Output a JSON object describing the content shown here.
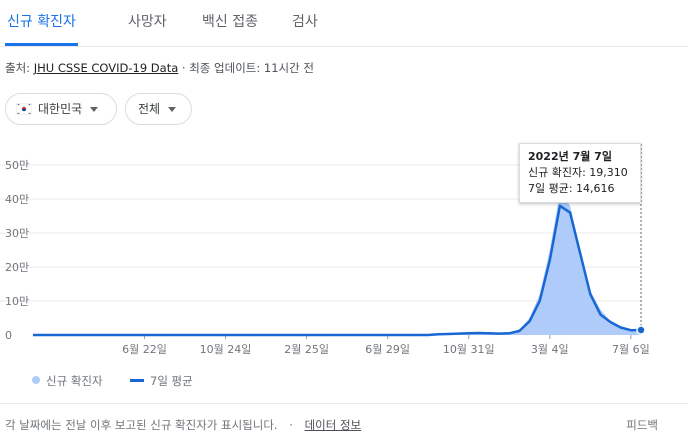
{
  "tabs": [
    {
      "label": "신규 확진자",
      "active": true
    },
    {
      "label": "사망자",
      "active": false
    },
    {
      "label": "백신 접종",
      "active": false
    },
    {
      "label": "검사",
      "active": false
    }
  ],
  "source": {
    "prefix": "출처: ",
    "link": "JHU CSSE COVID-19 Data",
    "suffix": " · 최종 업데이트: 11시간 전"
  },
  "filters": {
    "region": "대한민국",
    "period": "전체"
  },
  "tooltip": {
    "date": "2022년 7월 7일",
    "cases": "신규 확진자: 19,310",
    "average": "7일 평균: 14,616"
  },
  "legend": {
    "cases": "신규 확진자",
    "average": "7일 평균"
  },
  "footer": {
    "note": "각 날짜에는 전날 이후 보고된 신규 확진자가 표시됩니다.",
    "separator": "·",
    "data_link": "데이터 정보",
    "feedback": "피드백"
  },
  "colors": {
    "accent": "#1a73e8",
    "cases_fill": "#aecbfa",
    "average_line": "#1967d2"
  },
  "chart_data": {
    "type": "area",
    "ylim": [
      0,
      500000
    ],
    "y_ticks": [
      {
        "value": 0,
        "label": "0"
      },
      {
        "value": 100000,
        "label": "10만"
      },
      {
        "value": 200000,
        "label": "20만"
      },
      {
        "value": 300000,
        "label": "30만"
      },
      {
        "value": 400000,
        "label": "40만"
      },
      {
        "value": 500000,
        "label": "50만"
      }
    ],
    "x_ticks": [
      {
        "index": 11,
        "label": "6월 22일"
      },
      {
        "index": 19,
        "label": "10월 24일"
      },
      {
        "index": 27,
        "label": "2월 25일"
      },
      {
        "index": 35,
        "label": "6월 29일"
      },
      {
        "index": 43,
        "label": "10월 31일"
      },
      {
        "index": 51,
        "label": "3월 4일"
      },
      {
        "index": 59,
        "label": "7월 6일"
      }
    ],
    "series": [
      {
        "name": "신규 확진자",
        "values": [
          0,
          0,
          0,
          0,
          0,
          0,
          0,
          0,
          0,
          0,
          0,
          0,
          0,
          0,
          0,
          0,
          0,
          0,
          0,
          0,
          0,
          0,
          0,
          0,
          0,
          0,
          0,
          0,
          0,
          0,
          0,
          0,
          0,
          0,
          0,
          0,
          0,
          0,
          0,
          0,
          2000,
          3000,
          5000,
          6000,
          7000,
          5000,
          4000,
          6000,
          15000,
          50000,
          120000,
          250000,
          420000,
          380000,
          250000,
          130000,
          75000,
          40000,
          25000,
          15000,
          19310
        ]
      },
      {
        "name": "7일 평균",
        "values": [
          0,
          0,
          0,
          0,
          0,
          0,
          0,
          0,
          0,
          0,
          0,
          0,
          0,
          0,
          0,
          0,
          0,
          0,
          0,
          0,
          0,
          0,
          0,
          0,
          0,
          0,
          0,
          0,
          0,
          0,
          0,
          0,
          0,
          0,
          0,
          0,
          0,
          0,
          0,
          0,
          2000,
          3000,
          4000,
          5000,
          6000,
          5000,
          4000,
          5000,
          12000,
          40000,
          100000,
          220000,
          380000,
          360000,
          240000,
          120000,
          60000,
          38000,
          22000,
          14000,
          14616
        ]
      }
    ]
  }
}
